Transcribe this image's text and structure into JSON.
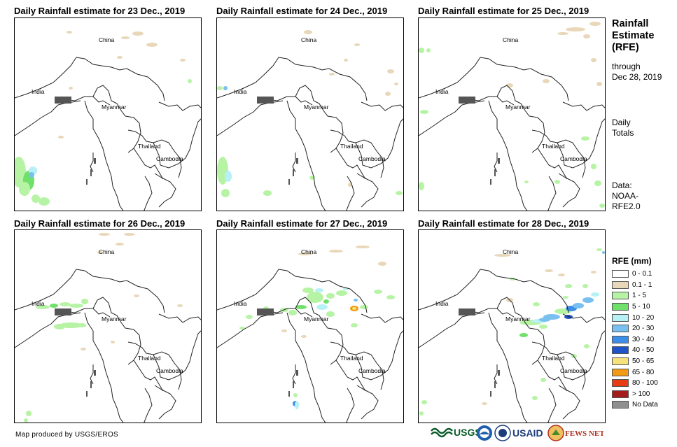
{
  "panels": [
    {
      "title": "Daily Rainfall estimate for 23 Dec., 2019"
    },
    {
      "title": "Daily Rainfall estimate for 24 Dec., 2019"
    },
    {
      "title": "Daily Rainfall estimate for 25 Dec., 2019"
    },
    {
      "title": "Daily Rainfall estimate for 26 Dec., 2019"
    },
    {
      "title": "Daily Rainfall estimate for 27 Dec., 2019"
    },
    {
      "title": "Daily Rainfall estimate for 28 Dec., 2019"
    }
  ],
  "map_labels": {
    "china": "China",
    "india": "India",
    "myanmar": "Myanmar",
    "thailand": "Thailand",
    "cambodia": "Cambodia"
  },
  "side": {
    "title_line1": "Rainfall",
    "title_line2": "Estimate",
    "title_line3": "(RFE)",
    "through": "through",
    "date": "Dec 28, 2019",
    "daily": "Daily",
    "totals": "Totals",
    "data_label": "Data:",
    "data_source1": "NOAA-",
    "data_source2": "RFE2.0"
  },
  "legend": {
    "title": "RFE (mm)",
    "items": [
      {
        "label": "0 - 0.1",
        "color": "#ffffff"
      },
      {
        "label": "0.1 - 1",
        "color": "#e8d7b8"
      },
      {
        "label": "1 - 5",
        "color": "#b7f3a5"
      },
      {
        "label": "5 - 10",
        "color": "#6fe06a"
      },
      {
        "label": "10 - 20",
        "color": "#b7f0f5"
      },
      {
        "label": "20 - 30",
        "color": "#79bff0"
      },
      {
        "label": "30 - 40",
        "color": "#3d8ee6"
      },
      {
        "label": "40 - 50",
        "color": "#1f54c8"
      },
      {
        "label": "50 - 65",
        "color": "#f6e27c"
      },
      {
        "label": "65 - 80",
        "color": "#f29a16"
      },
      {
        "label": "80 - 100",
        "color": "#e83d12"
      },
      {
        "label": "> 100",
        "color": "#a51c1c"
      },
      {
        "label": "No Data",
        "color": "#8f8f8f"
      }
    ]
  },
  "credit": "Map produced by USGS/EROS",
  "logos": {
    "usgs": "USGS",
    "usaid": "USAID",
    "fewsnet": "FEWS NET"
  }
}
